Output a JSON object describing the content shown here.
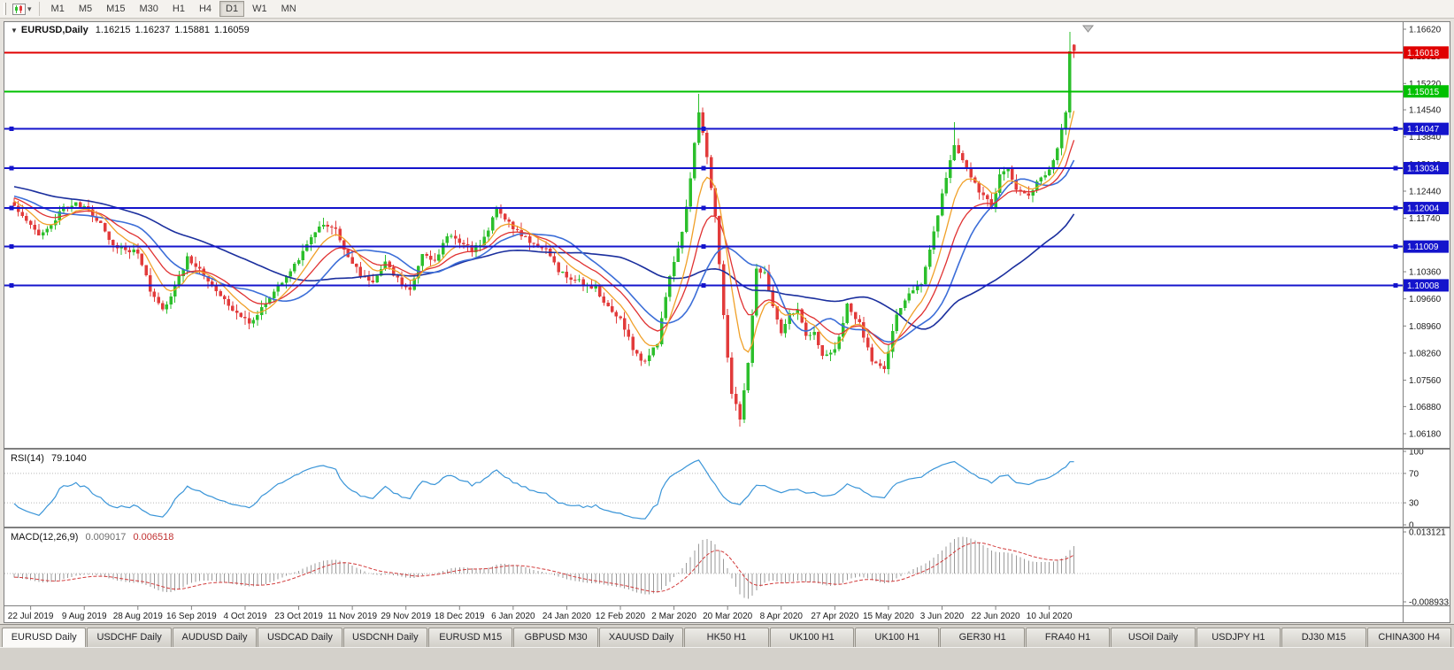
{
  "icons": {
    "collapse_arrow": "▼",
    "toolbar_chart_icon": "candlestick-chart-icon",
    "toolbar_caret": "▾",
    "shift_marker": "chart-shift-triangle"
  },
  "toolbar": {
    "timeframes": [
      "M1",
      "M5",
      "M15",
      "M30",
      "H1",
      "H4",
      "D1",
      "W1",
      "MN"
    ],
    "active_timeframe": "D1"
  },
  "chart": {
    "symbol_title": "EURUSD,Daily",
    "open": "1.16215",
    "high": "1.16237",
    "low": "1.15881",
    "close": "1.16059"
  },
  "rsi_pane": {
    "label": "RSI(14)",
    "value": "79.1040"
  },
  "macd_pane": {
    "label": "MACD(12,26,9)",
    "value_main": "0.009017",
    "value_signal": "0.006518"
  },
  "tabs": [
    "EURUSD Daily",
    "USDCHF Daily",
    "AUDUSD Daily",
    "USDCAD Daily",
    "USDCNH Daily",
    "EURUSD M15",
    "GBPUSD M30",
    "XAUUSD Daily",
    "HK50 H1",
    "UK100 H1",
    "UK100 H1",
    "GER30 H1",
    "FRA40 H1",
    "USOil Daily",
    "USDJPY H1",
    "DJ30 M15",
    "CHINA300 H4"
  ],
  "chart_data": {
    "type": "candlestick",
    "symbol": "EURUSD",
    "period": "Daily",
    "bars": 258,
    "price_axis_ticks": [
      "1.16620",
      "1.15920",
      "1.15220",
      "1.14540",
      "1.13840",
      "1.13140",
      "1.12440",
      "1.11740",
      "1.11040",
      "1.10360",
      "1.09660",
      "1.08960",
      "1.08260",
      "1.07560",
      "1.06880",
      "1.06180"
    ],
    "time_axis_labels": [
      "22 Jul 2019",
      "9 Aug 2019",
      "28 Aug 2019",
      "16 Sep 2019",
      "4 Oct 2019",
      "23 Oct 2019",
      "11 Nov 2019",
      "29 Nov 2019",
      "18 Dec 2019",
      "6 Jan 2020",
      "24 Jan 2020",
      "12 Feb 2020",
      "2 Mar 2020",
      "20 Mar 2020",
      "8 Apr 2020",
      "27 Apr 2020",
      "15 May 2020",
      "3 Jun 2020",
      "22 Jun 2020",
      "10 Jul 2020"
    ],
    "first_label_bar": 4,
    "label_step": 13,
    "up_color": "#2cbf2c",
    "down_color": "#e23b3b",
    "last_bar": {
      "open": 1.16215,
      "high": 1.16237,
      "low": 1.15881,
      "close": 1.16059
    },
    "anchors": [
      [
        0,
        1.1205
      ],
      [
        3,
        1.1165
      ],
      [
        6,
        1.1125
      ],
      [
        9,
        1.115
      ],
      [
        12,
        1.1205
      ],
      [
        15,
        1.121
      ],
      [
        18,
        1.1195
      ],
      [
        21,
        1.116
      ],
      [
        24,
        1.1105
      ],
      [
        27,
        1.1095
      ],
      [
        30,
        1.1085
      ],
      [
        33,
        1.099
      ],
      [
        36,
        1.0935
      ],
      [
        39,
        1.1
      ],
      [
        42,
        1.107
      ],
      [
        45,
        1.104
      ],
      [
        48,
        1.1005
      ],
      [
        51,
        1.096
      ],
      [
        54,
        1.093
      ],
      [
        57,
        1.09
      ],
      [
        60,
        1.094
      ],
      [
        63,
        1.0985
      ],
      [
        66,
        1.1025
      ],
      [
        69,
        1.107
      ],
      [
        72,
        1.113
      ],
      [
        75,
        1.1155
      ],
      [
        78,
        1.114
      ],
      [
        81,
        1.107
      ],
      [
        84,
        1.103
      ],
      [
        87,
        1.1005
      ],
      [
        90,
        1.106
      ],
      [
        93,
        1.1015
      ],
      [
        96,
        1.0985
      ],
      [
        99,
        1.108
      ],
      [
        102,
        1.106
      ],
      [
        105,
        1.113
      ],
      [
        108,
        1.1115
      ],
      [
        111,
        1.109
      ],
      [
        114,
        1.112
      ],
      [
        117,
        1.12
      ],
      [
        120,
        1.116
      ],
      [
        123,
        1.113
      ],
      [
        126,
        1.1105
      ],
      [
        129,
        1.1095
      ],
      [
        132,
        1.1035
      ],
      [
        135,
        1.102
      ],
      [
        138,
        1.1005
      ],
      [
        141,
        1.0995
      ],
      [
        144,
        1.0945
      ],
      [
        147,
        1.0915
      ],
      [
        150,
        1.084
      ],
      [
        153,
        1.08
      ],
      [
        156,
        1.0855
      ],
      [
        159,
        1.103
      ],
      [
        162,
        1.1135
      ],
      [
        164,
        1.128
      ],
      [
        166,
        1.145
      ],
      [
        168,
        1.133
      ],
      [
        170,
        1.118
      ],
      [
        172,
        1.092
      ],
      [
        174,
        1.072
      ],
      [
        176,
        1.066
      ],
      [
        178,
        1.08
      ],
      [
        180,
        1.105
      ],
      [
        182,
        1.103
      ],
      [
        184,
        1.095
      ],
      [
        186,
        1.088
      ],
      [
        188,
        1.093
      ],
      [
        190,
        1.0935
      ],
      [
        192,
        1.087
      ],
      [
        194,
        1.088
      ],
      [
        196,
        1.082
      ],
      [
        199,
        1.083
      ],
      [
        202,
        1.095
      ],
      [
        205,
        1.09
      ],
      [
        208,
        1.081
      ],
      [
        211,
        1.079
      ],
      [
        214,
        1.092
      ],
      [
        217,
        1.098
      ],
      [
        220,
        1.101
      ],
      [
        223,
        1.1135
      ],
      [
        225,
        1.1235
      ],
      [
        228,
        1.136
      ],
      [
        231,
        1.13
      ],
      [
        234,
        1.1245
      ],
      [
        237,
        1.1205
      ],
      [
        239,
        1.1285
      ],
      [
        241,
        1.131
      ],
      [
        243,
        1.125
      ],
      [
        246,
        1.123
      ],
      [
        249,
        1.128
      ],
      [
        251,
        1.13
      ],
      [
        253,
        1.136
      ],
      [
        255,
        1.145
      ],
      [
        256,
        1.16
      ]
    ],
    "forced_highs": [
      [
        166,
        1.1495
      ],
      [
        228,
        1.1422
      ],
      [
        256,
        1.1655
      ]
    ],
    "forced_lows": [
      [
        176,
        1.0636
      ],
      [
        211,
        1.0775
      ]
    ],
    "levels": [
      {
        "label": "1.16018",
        "price": 1.16018,
        "color": "#e00000",
        "handles": false
      },
      {
        "label": "1.15015",
        "price": 1.15015,
        "color": "#00c000",
        "handles": false
      },
      {
        "label": "1.14047",
        "price": 1.14047,
        "color": "#1414cc",
        "handles": true
      },
      {
        "label": "1.13034",
        "price": 1.13034,
        "color": "#1414cc",
        "handles": true
      },
      {
        "label": "1.12004",
        "price": 1.12004,
        "color": "#1414cc",
        "handles": true
      },
      {
        "label": "1.11009",
        "price": 1.11009,
        "color": "#1414cc",
        "handles": true
      },
      {
        "label": "1.10008",
        "price": 1.10008,
        "color": "#1414cc",
        "handles": true
      }
    ],
    "moving_averages": [
      {
        "name": "slow-navy",
        "type": "sma",
        "period": 50,
        "color": "#1b2f9e",
        "width": 1.6
      },
      {
        "name": "medium-blue",
        "type": "sma",
        "period": 20,
        "color": "#3c6ed8",
        "width": 1.6
      },
      {
        "name": "fast-red",
        "type": "ema",
        "period": 16,
        "color": "#e03232",
        "width": 1.3
      },
      {
        "name": "fast-orange",
        "type": "ema",
        "period": 8,
        "color": "#f0a028",
        "width": 1.3
      }
    ],
    "indicators": {
      "rsi": {
        "name": "RSI",
        "period": 14,
        "current_value": 79.104,
        "axis": [
          "100",
          "70",
          "30",
          "0"
        ],
        "levels": [
          70,
          30
        ],
        "color": "#3a95d8"
      },
      "macd": {
        "name": "MACD",
        "fast": 12,
        "slow": 26,
        "signal": 9,
        "value_main": 0.009017,
        "value_signal": 0.006518,
        "axis_max": "0.013121",
        "axis_min": "-0.008933",
        "histogram_color": "#9a9a9a",
        "signal_color": "#d23b3b"
      }
    }
  }
}
